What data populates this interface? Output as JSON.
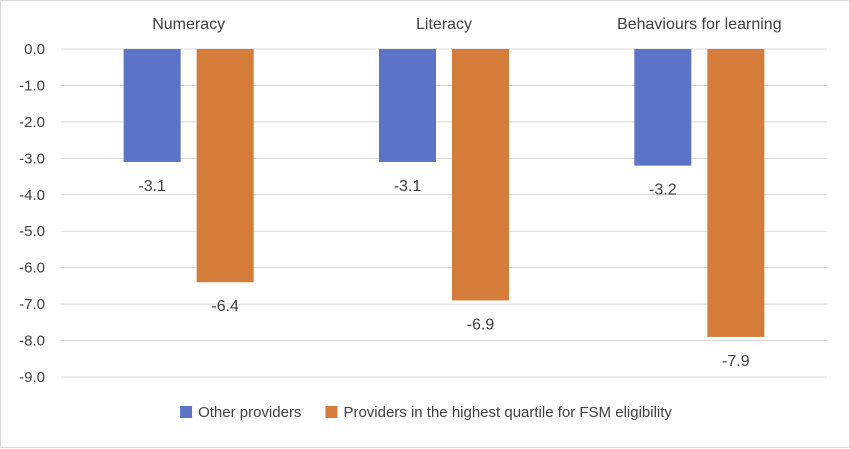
{
  "chart_data": {
    "type": "bar",
    "categories": [
      "Numeracy",
      "Literacy",
      "Behaviours for learning"
    ],
    "series": [
      {
        "name": "Other providers",
        "color": "#5b74c7",
        "values": [
          -3.1,
          -3.1,
          -3.2
        ]
      },
      {
        "name": "Providers in the highest quartile for FSM eligibility",
        "color": "#d67c3b",
        "values": [
          -6.4,
          -6.9,
          -7.9
        ]
      }
    ],
    "ylim": [
      -9.0,
      0.0
    ],
    "yticks": [
      0.0,
      -1.0,
      -2.0,
      -3.0,
      -4.0,
      -5.0,
      -6.0,
      -7.0,
      -8.0,
      -9.0
    ],
    "ytick_labels": [
      "0.0",
      "-1.0",
      "-2.0",
      "-3.0",
      "-4.0",
      "-5.0",
      "-6.0",
      "-7.0",
      "-8.0",
      "-9.0"
    ],
    "category_label_position": "top",
    "grid": true,
    "legend_position": "bottom"
  }
}
